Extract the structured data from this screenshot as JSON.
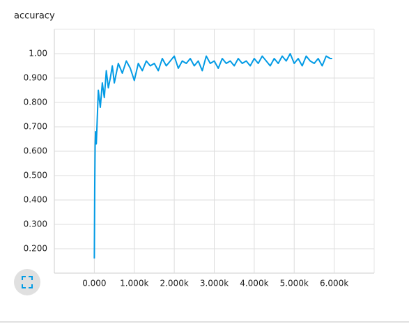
{
  "chart_data": {
    "type": "line",
    "title": "accuracy",
    "x": [
      0,
      10,
      20,
      30,
      50,
      75,
      100,
      150,
      200,
      250,
      300,
      350,
      400,
      450,
      500,
      600,
      700,
      800,
      900,
      1000,
      1100,
      1200,
      1300,
      1400,
      1500,
      1600,
      1700,
      1800,
      1900,
      2000,
      2100,
      2200,
      2300,
      2400,
      2500,
      2600,
      2700,
      2800,
      2900,
      3000,
      3100,
      3200,
      3300,
      3400,
      3500,
      3600,
      3700,
      3800,
      3900,
      4000,
      4100,
      4200,
      4300,
      4400,
      4500,
      4600,
      4700,
      4800,
      4900,
      5000,
      5100,
      5200,
      5300,
      5400,
      5500,
      5600,
      5700,
      5800,
      5900,
      5950
    ],
    "series": [
      {
        "name": "accuracy",
        "color": "#039be5",
        "values": [
          0.16,
          0.45,
          0.62,
          0.68,
          0.63,
          0.74,
          0.85,
          0.78,
          0.88,
          0.82,
          0.93,
          0.86,
          0.9,
          0.95,
          0.88,
          0.96,
          0.92,
          0.97,
          0.94,
          0.89,
          0.96,
          0.93,
          0.97,
          0.95,
          0.96,
          0.93,
          0.98,
          0.95,
          0.97,
          0.99,
          0.94,
          0.97,
          0.96,
          0.98,
          0.95,
          0.97,
          0.93,
          0.99,
          0.96,
          0.97,
          0.94,
          0.98,
          0.96,
          0.97,
          0.95,
          0.98,
          0.96,
          0.97,
          0.95,
          0.98,
          0.96,
          0.99,
          0.97,
          0.95,
          0.98,
          0.96,
          0.99,
          0.97,
          1.0,
          0.96,
          0.98,
          0.95,
          0.99,
          0.97,
          0.96,
          0.98,
          0.95,
          0.99,
          0.98,
          0.98
        ]
      }
    ],
    "xlim": [
      -1000,
      7000
    ],
    "xticks": [
      {
        "value": 0,
        "label": "0.000"
      },
      {
        "value": 1000,
        "label": "1.000k"
      },
      {
        "value": 2000,
        "label": "2.000k"
      },
      {
        "value": 3000,
        "label": "3.000k"
      },
      {
        "value": 4000,
        "label": "4.000k"
      },
      {
        "value": 5000,
        "label": "5.000k"
      },
      {
        "value": 6000,
        "label": "6.000k"
      }
    ],
    "ylim": [
      0.1,
      1.1
    ],
    "yticks": [
      {
        "value": 0.2,
        "label": "0.200"
      },
      {
        "value": 0.3,
        "label": "0.300"
      },
      {
        "value": 0.4,
        "label": "0.400"
      },
      {
        "value": 0.5,
        "label": "0.500"
      },
      {
        "value": 0.6,
        "label": "0.600"
      },
      {
        "value": 0.7,
        "label": "0.700"
      },
      {
        "value": 0.8,
        "label": "0.800"
      },
      {
        "value": 0.9,
        "label": "0.900"
      },
      {
        "value": 1,
        "label": "1.00"
      }
    ],
    "grid": true
  }
}
